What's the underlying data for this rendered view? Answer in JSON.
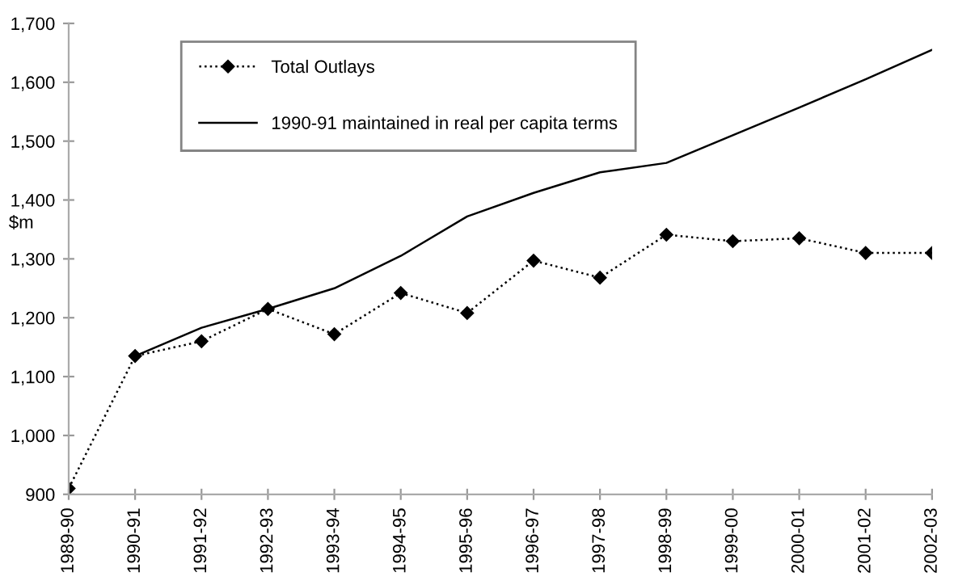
{
  "chart_data": {
    "type": "line",
    "ylabel": "$m",
    "categories": [
      "1989-90",
      "1990-91",
      "1991-92",
      "1992-93",
      "1993-94",
      "1994-95",
      "1995-96",
      "1996-97",
      "1997-98",
      "1998-99",
      "1999-00",
      "2000-01",
      "2001-02",
      "2002-03"
    ],
    "series": [
      {
        "name": "Total Outlays",
        "color": "#000000",
        "line_style": "dotted",
        "marker": "diamond",
        "values": [
          910,
          1135,
          1160,
          1215,
          1172,
          1242,
          1208,
          1297,
          1268,
          1341,
          1330,
          1335,
          1310,
          1310
        ]
      },
      {
        "name": "1990-91 maintained in real per capita terms",
        "color": "#000000",
        "line_style": "solid",
        "values": [
          null,
          1135,
          1183,
          1215,
          1250,
          1305,
          1372,
          1412,
          1447,
          1463,
          1510,
          1557,
          1605,
          1655
        ]
      }
    ],
    "ylim": [
      900,
      1700
    ],
    "yticks": [
      {
        "value": 900,
        "label": "900"
      },
      {
        "value": 1000,
        "label": "1,000"
      },
      {
        "value": 1100,
        "label": "1,100"
      },
      {
        "value": 1200,
        "label": "1,200"
      },
      {
        "value": 1300,
        "label": "1,300"
      },
      {
        "value": 1400,
        "label": "1,400"
      },
      {
        "value": 1500,
        "label": "1,500"
      },
      {
        "value": 1600,
        "label": "1,600"
      },
      {
        "value": 1700,
        "label": "1,700"
      }
    ],
    "grid": false,
    "legend": "top left"
  }
}
